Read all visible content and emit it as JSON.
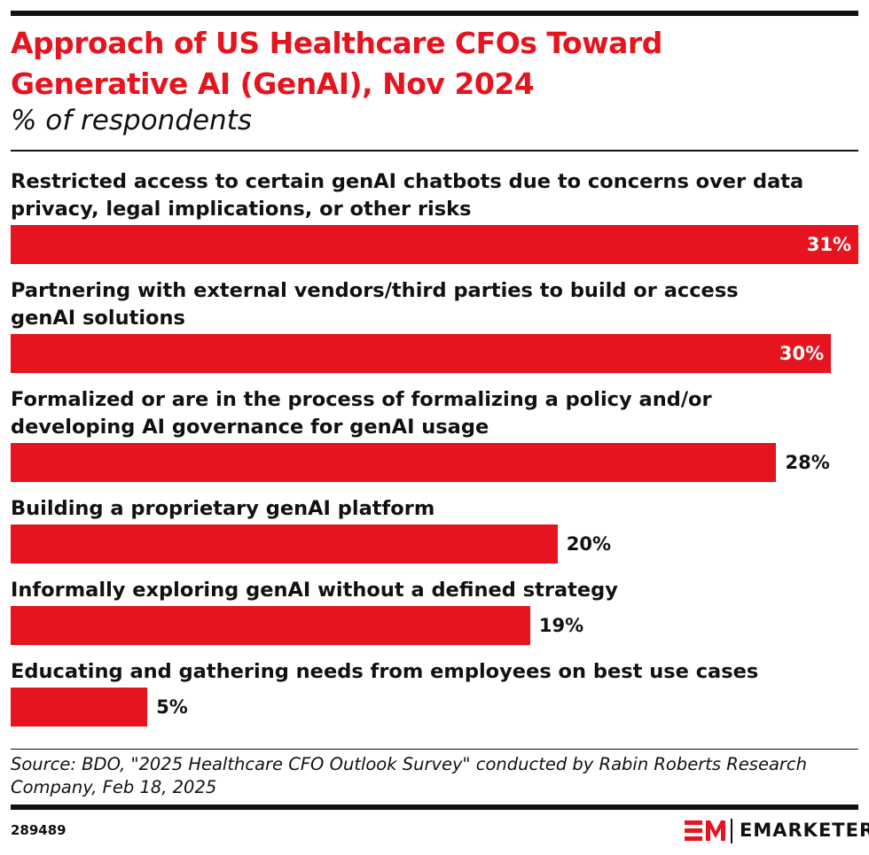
{
  "chart_data": {
    "type": "bar",
    "orientation": "horizontal",
    "title": "Approach of US Healthcare CFOs Toward Generative AI (GenAI), Nov 2024",
    "subtitle": "% of respondents",
    "categories": [
      "Restricted access to certain genAI chatbots due to concerns over data privacy, legal implications, or other risks",
      "Partnering with external vendors/third parties to build or access genAI solutions",
      "Formalized or are in the process of formalizing a policy and/or developing AI governance for genAI usage",
      "Building a proprietary genAI platform",
      "Informally exploring genAI without a defined strategy",
      "Educating and gathering needs from employees on best use cases"
    ],
    "values": [
      31,
      30,
      28,
      20,
      19,
      5
    ],
    "value_labels": [
      "31%",
      "30%",
      "28%",
      "20%",
      "19%",
      "5%"
    ],
    "color": "#e5141e",
    "source": "Source: BDO, \"2025 Healthcare CFO Outlook Survey\" conducted by Rabin Roberts Research Company, Feb 18, 2025",
    "chart_id": "289489",
    "brand": "EMARKETER"
  }
}
